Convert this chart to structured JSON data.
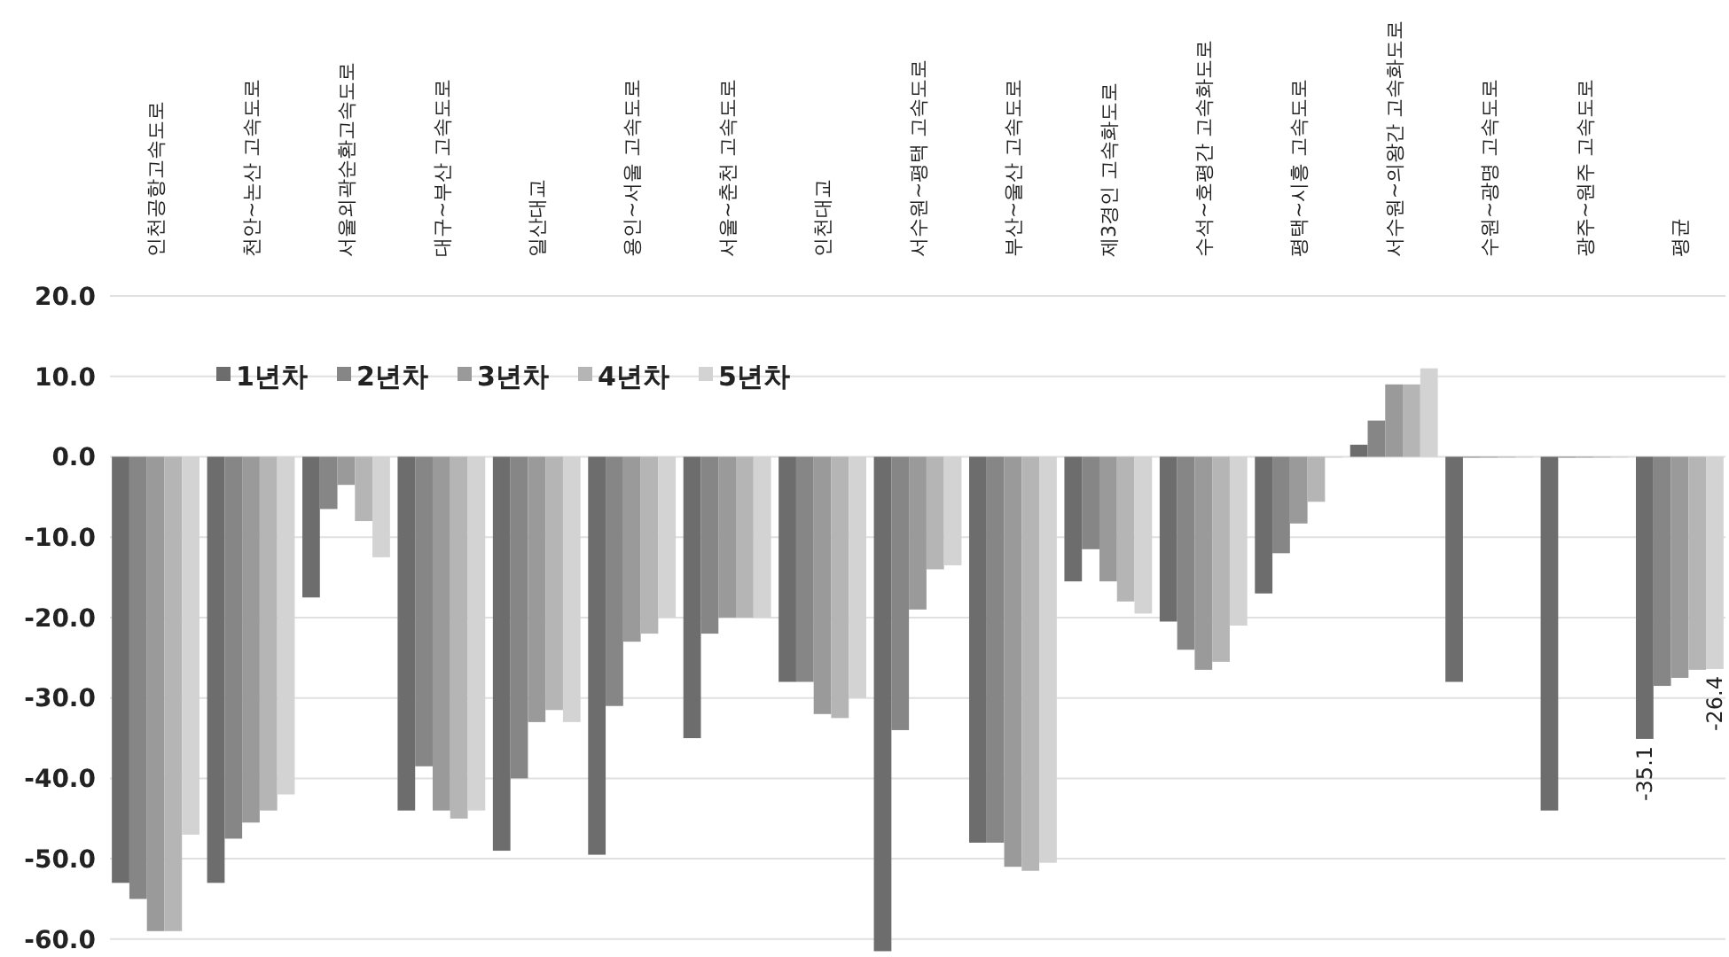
{
  "chart_data": {
    "type": "bar",
    "categories": [
      "인천공항고속도로",
      "천안~논산 고속도로",
      "서울외곽순환고속도로",
      "대구~부산 고속도로",
      "일산대교",
      "용인~서울 고속도로",
      "서울~춘천 고속도로",
      "인천대교",
      "서수원~평택 고속도로",
      "부산~울산 고속도로",
      "제3경인 고속화도로",
      "수석~호평간 고속화도로",
      "평택~시흥 고속도로",
      "서수원~의왕간 고속화도로",
      "수원~광명 고속도로",
      "광주~원주 고속도로",
      "평균"
    ],
    "series": [
      {
        "name": "1년차",
        "color": "#6d6d6d",
        "values": [
          -53,
          -53,
          -17.5,
          -44,
          -49,
          -49.5,
          -35,
          -28,
          -61.5,
          -48,
          -15.5,
          -20.5,
          -17,
          1.5,
          -28,
          -44,
          -35.1
        ],
        "value_labels": [
          null,
          null,
          null,
          null,
          null,
          null,
          null,
          null,
          null,
          null,
          null,
          null,
          null,
          null,
          null,
          null,
          "-35.1"
        ]
      },
      {
        "name": "2년차",
        "color": "#868686",
        "values": [
          -55,
          -47.5,
          -6.5,
          -38.5,
          -40,
          -31,
          -22,
          -28,
          -34,
          -48,
          -11.5,
          -24,
          -12,
          4.5,
          0,
          0,
          -28.5
        ]
      },
      {
        "name": "3년차",
        "color": "#9a9a9a",
        "values": [
          -59,
          -45.5,
          -3.5,
          -44,
          -33,
          -23,
          -20,
          -32,
          -19,
          -51,
          -15.5,
          -26.5,
          -8.3,
          9,
          0,
          0,
          -27.5
        ]
      },
      {
        "name": "4년차",
        "color": "#b5b5b5",
        "values": [
          -59,
          -44,
          -8,
          -45,
          -31.5,
          -22,
          -20,
          -32.5,
          -14,
          -51.5,
          -18,
          -25.5,
          -5.6,
          9,
          0,
          0,
          -26.5
        ]
      },
      {
        "name": "5년차",
        "color": "#d3d3d3",
        "values": [
          -47,
          -42,
          -12.5,
          -44,
          -33,
          -20,
          -20,
          -30,
          -13.5,
          -50.5,
          -19.5,
          -21,
          0,
          11,
          0,
          0,
          -26.4
        ],
        "value_labels": [
          null,
          null,
          null,
          null,
          null,
          null,
          null,
          null,
          null,
          null,
          null,
          null,
          null,
          null,
          null,
          null,
          "-26.4"
        ]
      }
    ],
    "ylim": [
      -62,
      20
    ],
    "yticks": [
      {
        "value": 20,
        "label": "20.0"
      },
      {
        "value": 10,
        "label": "10.0"
      },
      {
        "value": 0,
        "label": "0.0"
      },
      {
        "value": -10,
        "label": "-10.0"
      },
      {
        "value": -20,
        "label": "-20.0"
      },
      {
        "value": -30,
        "label": "-30.0"
      },
      {
        "value": -40,
        "label": "-40.0"
      },
      {
        "value": -50,
        "label": "-50.0"
      },
      {
        "value": -60,
        "label": "-60.0"
      }
    ],
    "grid": "y",
    "legend": "top left"
  }
}
